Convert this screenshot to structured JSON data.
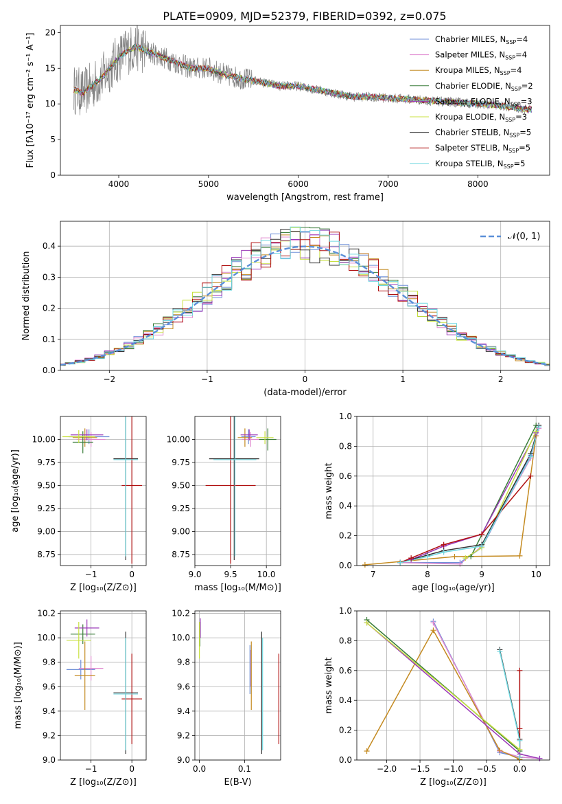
{
  "figure": {
    "title": "PLATE=0909, MJD=52379, FIBERID=0392, z=0.075"
  },
  "models": [
    {
      "name": "Chabrier MILES",
      "nssp": "4",
      "color": "#6f8fd8"
    },
    {
      "name": "Salpeter MILES",
      "nssp": "4",
      "color": "#e08ad0"
    },
    {
      "name": "Kroupa MILES",
      "nssp": "4",
      "color": "#c48a20"
    },
    {
      "name": "Chabrier ELODIE",
      "nssp": "2",
      "color": "#3a7d3a"
    },
    {
      "name": "Salpeter ELODIE",
      "nssp": "3",
      "color": "#9a38b8"
    },
    {
      "name": "Kroupa ELODIE",
      "nssp": "3",
      "color": "#c8e040"
    },
    {
      "name": "Chabrier STELIB",
      "nssp": "5",
      "color": "#333333"
    },
    {
      "name": "Salpeter STELIB",
      "nssp": "5",
      "color": "#b01010"
    },
    {
      "name": "Kroupa STELIB",
      "nssp": "5",
      "color": "#70d8e0"
    }
  ],
  "colors": {
    "data_spectrum": "#808080",
    "gaussian": "#5b8fd8",
    "orange": "#e07a20"
  },
  "chart_data": [
    {
      "id": "spectrum",
      "type": "line",
      "title": "PLATE=0909, MJD=52379, FIBERID=0392, z=0.075",
      "xlabel": "wavelength [Angstrom, rest frame]",
      "ylabel": "Flux [fλ10⁻¹⁷ erg cm⁻² s⁻¹ A⁻¹]",
      "xlim": [
        3350,
        8800
      ],
      "ylim": [
        0,
        21
      ],
      "xticks": [
        4000,
        5000,
        6000,
        7000,
        8000
      ],
      "yticks": [
        0,
        5,
        10,
        15,
        20
      ],
      "grid": false,
      "legend": "right",
      "series_envelope": {
        "x": [
          3500,
          3600,
          3700,
          3800,
          3900,
          4000,
          4100,
          4200,
          4400,
          4600,
          4800,
          5000,
          5200,
          5400,
          5600,
          5800,
          6000,
          6200,
          6400,
          6600,
          6800,
          7000,
          7200,
          7400,
          7600,
          7800,
          8000,
          8200,
          8400,
          8600
        ],
        "y": [
          12,
          11.5,
          12.5,
          13.5,
          15,
          16.5,
          17.5,
          18,
          17,
          16,
          15,
          15,
          14,
          13.5,
          13,
          12.5,
          12.5,
          12,
          11.5,
          11,
          11,
          10.8,
          10.7,
          10.5,
          10.3,
          10.2,
          10,
          9.8,
          9.5,
          9.2
        ]
      }
    },
    {
      "id": "residual-histogram",
      "type": "histogram",
      "xlabel": "(data-model)/error",
      "ylabel": "Normed distribution",
      "xlim": [
        -2.5,
        2.5
      ],
      "ylim": [
        0,
        0.48
      ],
      "xticks": [
        -2,
        -1,
        0,
        1,
        2
      ],
      "yticks": [
        0.0,
        0.1,
        0.2,
        0.3,
        0.4
      ],
      "grid": true,
      "legend": "top-right",
      "reference_curve": {
        "name": "𝒩(0, 1)",
        "style": "dashed"
      }
    },
    {
      "id": "age-vs-z",
      "type": "scatter",
      "xlabel": "Z [log₁₀(Z/Z⊙)]",
      "ylabel": "age  [log₁₀(age/yr)]",
      "xlim": [
        -1.75,
        0.35
      ],
      "ylim": [
        8.63,
        10.25
      ],
      "xticks": [
        -1,
        0
      ],
      "yticks": [
        8.75,
        9.0,
        9.25,
        9.5,
        9.75,
        10.0
      ],
      "grid": true,
      "points": [
        {
          "m": 0,
          "x": -1.05,
          "y": 10.03,
          "ex": 0.5,
          "ey": 0.08
        },
        {
          "m": 1,
          "x": -1.0,
          "y": 10.0,
          "ex": 0.35,
          "ey": 0.08
        },
        {
          "m": 2,
          "x": -1.15,
          "y": 10.02,
          "ex": 0.3,
          "ey": 0.1
        },
        {
          "m": 3,
          "x": -1.2,
          "y": 9.97,
          "ex": 0.25,
          "ey": 0.12
        },
        {
          "m": 4,
          "x": -1.1,
          "y": 10.05,
          "ex": 0.4,
          "ey": 0.06
        },
        {
          "m": 5,
          "x": -1.3,
          "y": 10.03,
          "ex": 0.4,
          "ey": 0.07
        },
        {
          "m": 6,
          "x": -0.15,
          "y": 9.79,
          "ex": 0.3,
          "ey": 1.1
        },
        {
          "m": 7,
          "x": 0.0,
          "y": 9.5,
          "ex": 0.25,
          "ey": 0.85
        },
        {
          "m": 8,
          "x": -0.15,
          "y": 9.78,
          "ex": 0.3,
          "ey": 1.05
        }
      ]
    },
    {
      "id": "age-vs-mass",
      "type": "scatter",
      "xlabel": "mass [log₁₀(M/M⊙)]",
      "ylabel": "",
      "xlim": [
        9.0,
        10.2
      ],
      "ylim": [
        8.63,
        10.25
      ],
      "xticks": [
        9.0,
        9.5,
        10.0
      ],
      "yticks": [
        8.75,
        9.0,
        9.25,
        9.5,
        9.75,
        10.0
      ],
      "grid": true,
      "points": [
        {
          "m": 0,
          "x": 9.75,
          "y": 10.03,
          "ex": 0.1,
          "ey": 0.08
        },
        {
          "m": 1,
          "x": 9.78,
          "y": 10.0,
          "ex": 0.12,
          "ey": 0.08
        },
        {
          "m": 2,
          "x": 9.7,
          "y": 10.02,
          "ex": 0.1,
          "ey": 0.1
        },
        {
          "m": 3,
          "x": 10.02,
          "y": 10.0,
          "ex": 0.12,
          "ey": 0.12
        },
        {
          "m": 4,
          "x": 9.76,
          "y": 10.05,
          "ex": 0.12,
          "ey": 0.06
        },
        {
          "m": 5,
          "x": 9.98,
          "y": 10.02,
          "ex": 0.12,
          "ey": 0.07
        },
        {
          "m": 6,
          "x": 9.55,
          "y": 9.79,
          "ex": 0.35,
          "ey": 1.1
        },
        {
          "m": 7,
          "x": 9.5,
          "y": 9.5,
          "ex": 0.35,
          "ey": 0.85
        },
        {
          "m": 8,
          "x": 9.56,
          "y": 9.78,
          "ex": 0.3,
          "ey": 1.05
        }
      ]
    },
    {
      "id": "mass-weight-vs-age",
      "type": "line",
      "xlabel": "age  [log₁₀(age/yr)]",
      "ylabel": "mass weight",
      "xlim": [
        6.7,
        10.25
      ],
      "ylim": [
        0,
        1.0
      ],
      "xticks": [
        7,
        8,
        9,
        10
      ],
      "yticks": [
        0.0,
        0.2,
        0.4,
        0.6,
        0.8,
        1.0
      ],
      "grid": true,
      "series": [
        {
          "m": 0,
          "x": [
            7.5,
            8.6,
            9.0,
            9.9,
            10.05
          ],
          "y": [
            0.02,
            0.02,
            0.12,
            0.74,
            0.93
          ]
        },
        {
          "m": 1,
          "x": [
            7.5,
            8.6,
            9.0,
            9.9,
            10.05
          ],
          "y": [
            0.02,
            0.01,
            0.13,
            0.72,
            0.92
          ]
        },
        {
          "m": 2,
          "x": [
            6.85,
            8.5,
            9.7,
            10.0
          ],
          "y": [
            0.005,
            0.06,
            0.065,
            0.87
          ]
        },
        {
          "m": 3,
          "x": [
            8.8,
            10.0
          ],
          "y": [
            0.06,
            0.94
          ]
        },
        {
          "m": 4,
          "x": [
            7.7,
            8.3,
            9.0,
            10.0
          ],
          "y": [
            0.04,
            0.13,
            0.21,
            0.89
          ]
        },
        {
          "m": 5,
          "x": [
            8.7,
            9.0,
            10.0
          ],
          "y": [
            0.05,
            0.12,
            0.9
          ]
        },
        {
          "m": 6,
          "x": [
            7.5,
            8.0,
            8.3,
            9.0,
            9.9,
            10.05
          ],
          "y": [
            0.02,
            0.07,
            0.1,
            0.14,
            0.75,
            0.94
          ]
        },
        {
          "m": 7,
          "x": [
            7.5,
            7.7,
            8.3,
            9.0,
            9.9
          ],
          "y": [
            0.02,
            0.05,
            0.14,
            0.21,
            0.6
          ]
        },
        {
          "m": 8,
          "x": [
            7.5,
            8.0,
            8.3,
            9.0,
            9.9,
            10.05
          ],
          "y": [
            0.02,
            0.06,
            0.09,
            0.13,
            0.73,
            0.93
          ]
        }
      ]
    },
    {
      "id": "mass-vs-z",
      "type": "scatter",
      "xlabel": "Z [log₁₀(Z/Z⊙)]",
      "ylabel": "mass [log₁₀(M/M⊙)]",
      "xlim": [
        -1.75,
        0.35
      ],
      "ylim": [
        9.0,
        10.22
      ],
      "xticks": [
        -1,
        0
      ],
      "yticks": [
        9.0,
        9.2,
        9.4,
        9.6,
        9.8,
        10.0,
        10.2
      ],
      "grid": true,
      "points": [
        {
          "m": 0,
          "x": -1.25,
          "y": 9.74,
          "ex": 0.35,
          "ey": 0.08
        },
        {
          "m": 1,
          "x": -1.0,
          "y": 9.75,
          "ex": 0.3,
          "ey": 0.1
        },
        {
          "m": 2,
          "x": -1.15,
          "y": 9.69,
          "ex": 0.25,
          "ey": 0.28
        },
        {
          "m": 3,
          "x": -1.2,
          "y": 10.03,
          "ex": 0.3,
          "ey": 0.08
        },
        {
          "m": 4,
          "x": -1.1,
          "y": 10.08,
          "ex": 0.3,
          "ey": 0.07
        },
        {
          "m": 5,
          "x": -1.3,
          "y": 9.98,
          "ex": 0.3,
          "ey": 0.15
        },
        {
          "m": 6,
          "x": -0.15,
          "y": 9.55,
          "ex": 0.3,
          "ey": 0.5
        },
        {
          "m": 7,
          "x": 0.0,
          "y": 9.5,
          "ex": 0.25,
          "ey": 0.37
        },
        {
          "m": 8,
          "x": -0.15,
          "y": 9.54,
          "ex": 0.3,
          "ey": 0.46
        }
      ]
    },
    {
      "id": "mass-vs-ebv",
      "type": "scatter",
      "xlabel": "E(B-V)",
      "ylabel": "",
      "xlim": [
        -0.01,
        0.18
      ],
      "ylim": [
        9.0,
        10.22
      ],
      "xticks": [
        0.0,
        0.1
      ],
      "yticks": [
        9.0,
        9.2,
        9.4,
        9.6,
        9.8,
        10.0,
        10.2
      ],
      "grid": true,
      "points": [
        {
          "m": 0,
          "x": 0.112,
          "y": 9.74,
          "ex": 0.0,
          "ey": 0.2
        },
        {
          "m": 1,
          "x": 0.114,
          "y": 9.75,
          "ex": 0.0,
          "ey": 0.15
        },
        {
          "m": 2,
          "x": 0.115,
          "y": 9.69,
          "ex": 0.0,
          "ey": 0.28
        },
        {
          "m": 3,
          "x": 0.001,
          "y": 10.03,
          "ex": 0.0,
          "ey": 0.1
        },
        {
          "m": 4,
          "x": 0.002,
          "y": 10.08,
          "ex": 0.0,
          "ey": 0.08
        },
        {
          "m": 5,
          "x": 0.0,
          "y": 9.98,
          "ex": 0.0,
          "ey": 0.15
        },
        {
          "m": 6,
          "x": 0.138,
          "y": 9.55,
          "ex": 0.0,
          "ey": 0.5
        },
        {
          "m": 7,
          "x": 0.176,
          "y": 9.5,
          "ex": 0.0,
          "ey": 0.37
        },
        {
          "m": 8,
          "x": 0.14,
          "y": 9.54,
          "ex": 0.0,
          "ey": 0.46
        }
      ]
    },
    {
      "id": "mass-weight-vs-z",
      "type": "line",
      "xlabel": "Z [log₁₀(Z/Z⊙)]",
      "ylabel": "mass weight",
      "xlim": [
        -2.45,
        0.45
      ],
      "ylim": [
        0,
        1.0
      ],
      "xticks": [
        -2.0,
        -1.5,
        -1.0,
        -0.5,
        0.0
      ],
      "yticks": [
        0.0,
        0.2,
        0.4,
        0.6,
        0.8,
        1.0
      ],
      "grid": true,
      "series": [
        {
          "m": 0,
          "x": [
            -1.3,
            -0.3,
            0.0,
            0.3
          ],
          "y": [
            0.93,
            0.05,
            0.02,
            0.01
          ]
        },
        {
          "m": 1,
          "x": [
            -1.3,
            -0.3,
            0.0,
            0.3
          ],
          "y": [
            0.92,
            0.06,
            0.02,
            0.01
          ]
        },
        {
          "m": 2,
          "x": [
            -2.3,
            -1.3,
            -0.3,
            0.0
          ],
          "y": [
            0.06,
            0.87,
            0.065,
            0.005
          ]
        },
        {
          "m": 3,
          "x": [
            -2.3,
            0.0
          ],
          "y": [
            0.94,
            0.06
          ]
        },
        {
          "m": 4,
          "x": [
            -2.3,
            0.0,
            0.3
          ],
          "y": [
            0.92,
            0.04,
            0.01
          ]
        },
        {
          "m": 5,
          "x": [
            -2.3,
            0.0
          ],
          "y": [
            0.92,
            0.07
          ]
        },
        {
          "m": 6,
          "x": [
            -0.3,
            0.0,
            0.0
          ],
          "y": [
            0.74,
            0.14,
            0.02
          ]
        },
        {
          "m": 7,
          "x": [
            0.0,
            0.0,
            0.0
          ],
          "y": [
            0.6,
            0.21,
            0.02
          ]
        },
        {
          "m": 8,
          "x": [
            -0.3,
            0.0,
            0.0
          ],
          "y": [
            0.73,
            0.13,
            0.02
          ]
        }
      ]
    }
  ]
}
